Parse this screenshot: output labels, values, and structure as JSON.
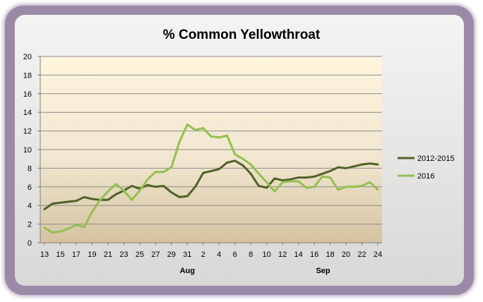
{
  "chart_data": {
    "type": "line",
    "title": "% Common Yellowthroat",
    "ylim": [
      0,
      20
    ],
    "yticks": [
      0,
      2,
      4,
      6,
      8,
      10,
      12,
      14,
      16,
      18,
      20
    ],
    "x_tick_labels": [
      "13",
      "15",
      "17",
      "19",
      "21",
      "23",
      "25",
      "27",
      "29",
      "31",
      "2",
      "4",
      "6",
      "8",
      "10",
      "12",
      "14",
      "16",
      "18",
      "20",
      "22",
      "24"
    ],
    "month_labels": [
      "Aug",
      "Sep"
    ],
    "legend_position": "right",
    "grid": true,
    "series": [
      {
        "name": "2012-2015",
        "color": "#4f6228",
        "values": [
          3.6,
          4.2,
          4.3,
          4.4,
          4.5,
          4.9,
          4.7,
          4.6,
          4.6,
          5.2,
          5.6,
          6.1,
          5.8,
          6.2,
          6.0,
          6.1,
          5.4,
          4.9,
          5.0,
          6.0,
          7.5,
          7.7,
          7.9,
          8.6,
          8.8,
          8.3,
          7.4,
          6.1,
          5.9,
          6.9,
          6.7,
          6.8,
          7.0,
          7.0,
          7.1,
          7.4,
          7.7,
          8.1,
          8.0,
          8.2,
          8.4,
          8.5,
          8.4
        ]
      },
      {
        "name": "2016",
        "color": "#92c050",
        "values": [
          1.6,
          1.1,
          1.2,
          1.5,
          1.9,
          1.7,
          3.3,
          4.6,
          5.5,
          6.3,
          5.6,
          4.6,
          5.6,
          6.8,
          7.6,
          7.6,
          8.1,
          10.8,
          12.7,
          12.1,
          12.3,
          11.4,
          11.3,
          11.5,
          9.5,
          9.0,
          8.4,
          7.4,
          6.5,
          5.5,
          6.5,
          6.6,
          6.6,
          5.9,
          6.0,
          7.1,
          7.0,
          5.7,
          6.0,
          6.0,
          6.1,
          6.5,
          5.7
        ]
      }
    ]
  }
}
